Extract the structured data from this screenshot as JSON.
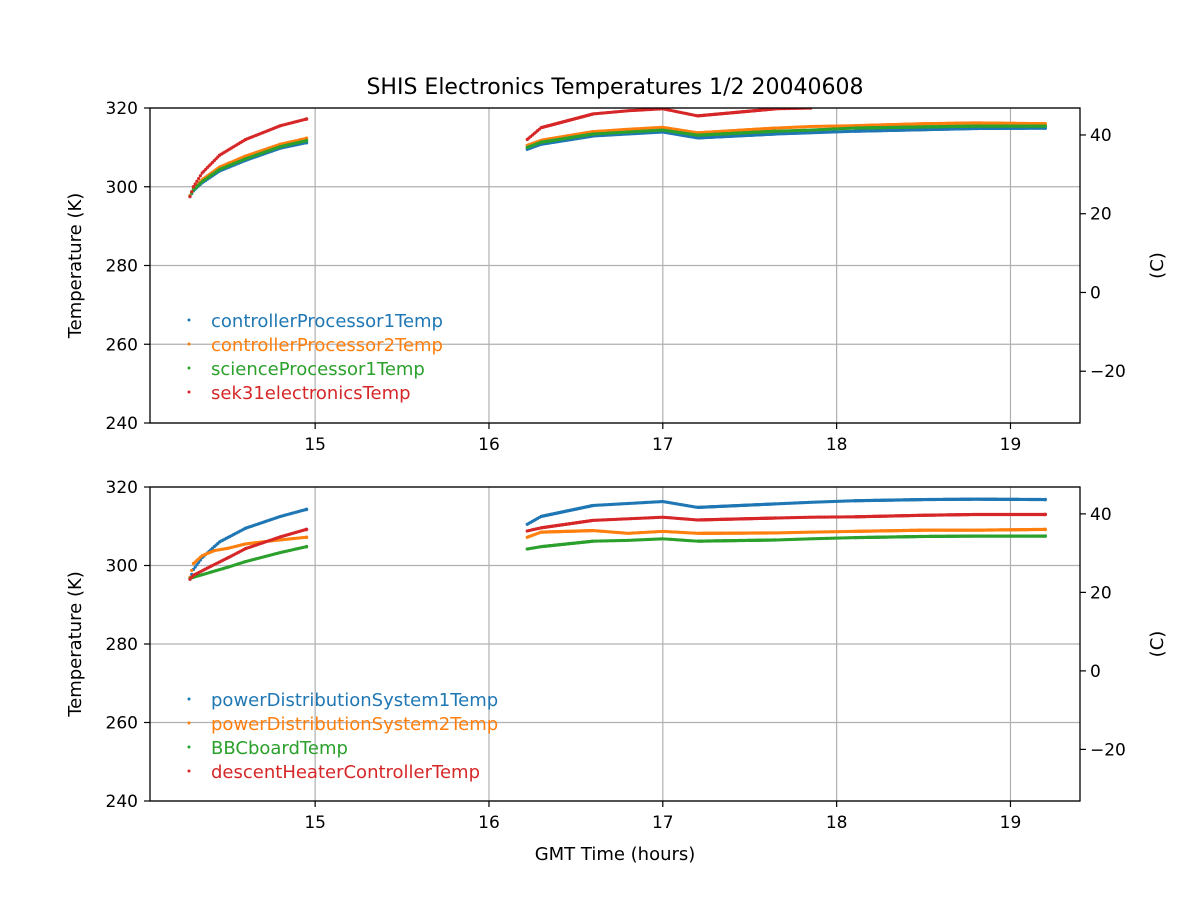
{
  "figure": {
    "title": "SHIS Electronics Temperatures 1/2 20040608"
  },
  "chart_data": [
    {
      "type": "scatter",
      "title": "SHIS Electronics Temperatures 1/2 20040608",
      "xlabel": "",
      "ylabel": "Temperature (K)",
      "y2label": "(C)",
      "xlim": [
        14.05,
        19.4
      ],
      "ylim": [
        240,
        320
      ],
      "y2lim": [
        -33.15,
        46.85
      ],
      "xticks": [
        15,
        16,
        17,
        18,
        19
      ],
      "yticks": [
        240,
        260,
        280,
        300,
        320
      ],
      "y2ticks": [
        -20,
        0,
        20,
        40
      ],
      "grid": true,
      "legend": "lower-left",
      "series": [
        {
          "name": "controllerProcessor1Temp",
          "color": "#1f77b4",
          "x": [
            14.28,
            14.3,
            14.35,
            14.45,
            14.6,
            14.8,
            14.95,
            16.22,
            16.3,
            16.6,
            16.8,
            17.0,
            17.2,
            17.65,
            17.85,
            18.1,
            18.5,
            18.8,
            19.2
          ],
          "y": [
            297.5,
            299,
            301,
            304,
            306.7,
            309.8,
            311.2,
            309.5,
            310.8,
            312.9,
            313.4,
            313.9,
            312.4,
            313.4,
            313.7,
            314.1,
            314.5,
            314.8,
            314.9
          ]
        },
        {
          "name": "controllerProcessor2Temp",
          "color": "#ff7f0e",
          "x": [
            14.28,
            14.3,
            14.35,
            14.45,
            14.6,
            14.8,
            14.95,
            16.22,
            16.3,
            16.6,
            16.8,
            17.0,
            17.2,
            17.65,
            17.85,
            18.1,
            18.5,
            18.8,
            19.2
          ],
          "y": [
            297.8,
            299.5,
            301.8,
            305,
            307.8,
            310.8,
            312.3,
            310.5,
            311.8,
            314,
            314.6,
            315.1,
            313.7,
            314.9,
            315.3,
            315.5,
            316,
            316.2,
            316
          ]
        },
        {
          "name": "scienceProcessor1Temp",
          "color": "#2ca02c",
          "x": [
            14.28,
            14.3,
            14.35,
            14.45,
            14.6,
            14.8,
            14.95,
            16.22,
            16.3,
            16.6,
            16.8,
            17.0,
            17.2,
            17.65,
            17.85,
            18.1,
            18.5,
            18.8,
            19.2
          ],
          "y": [
            297.6,
            299.2,
            301.3,
            304.4,
            307.1,
            310.2,
            311.7,
            310,
            311.3,
            313.4,
            313.9,
            314.4,
            313.1,
            314.1,
            314.4,
            314.9,
            315.2,
            315.4,
            315.4
          ]
        },
        {
          "name": "sek31electronicsTemp",
          "color": "#d62728",
          "x": [
            14.28,
            14.3,
            14.35,
            14.45,
            14.6,
            14.8,
            14.95,
            16.22,
            16.3,
            16.6,
            16.8,
            17.0,
            17.2,
            17.65,
            17.85
          ],
          "y": [
            297.5,
            300,
            303.5,
            308,
            312,
            315.5,
            317.2,
            312,
            315,
            318.5,
            319.3,
            319.8,
            318,
            319.8,
            320
          ]
        }
      ]
    },
    {
      "type": "scatter",
      "title": "",
      "xlabel": "GMT Time (hours)",
      "ylabel": "Temperature (K)",
      "y2label": "(C)",
      "xlim": [
        14.05,
        19.4
      ],
      "ylim": [
        240,
        320
      ],
      "y2lim": [
        -33.15,
        46.85
      ],
      "xticks": [
        15,
        16,
        17,
        18,
        19
      ],
      "yticks": [
        240,
        260,
        280,
        300,
        320
      ],
      "y2ticks": [
        -20,
        0,
        20,
        40
      ],
      "grid": true,
      "legend": "lower-left",
      "series": [
        {
          "name": "powerDistributionSystem1Temp",
          "color": "#1f77b4",
          "x": [
            14.28,
            14.3,
            14.35,
            14.45,
            14.6,
            14.8,
            14.95,
            16.22,
            16.3,
            16.6,
            16.8,
            17.0,
            17.2,
            17.65,
            17.85,
            18.1,
            18.5,
            18.8,
            19.2
          ],
          "y": [
            296.5,
            299,
            302,
            306,
            309.5,
            312.5,
            314.3,
            310.5,
            312.5,
            315.3,
            315.8,
            316.3,
            314.8,
            315.7,
            316.1,
            316.5,
            316.8,
            316.9,
            316.8
          ]
        },
        {
          "name": "powerDistributionSystem2Temp",
          "color": "#ff7f0e",
          "x": [
            14.28,
            14.3,
            14.35,
            14.42,
            14.5,
            14.6,
            14.75,
            14.95,
            16.22,
            16.3,
            16.6,
            16.8,
            17.0,
            17.2,
            17.65,
            17.85,
            18.1,
            18.5,
            18.8,
            19.2
          ],
          "y": [
            297,
            300.5,
            302.5,
            303.8,
            304.4,
            305.5,
            306.3,
            307.2,
            307.2,
            308.5,
            308.9,
            308.2,
            308.7,
            308.2,
            308.3,
            308.5,
            308.7,
            309,
            309,
            309.2
          ]
        },
        {
          "name": "BBCboardTemp",
          "color": "#2ca02c",
          "x": [
            14.28,
            14.3,
            14.4,
            14.5,
            14.6,
            14.8,
            14.95,
            16.22,
            16.3,
            16.6,
            16.8,
            17.0,
            17.2,
            17.65,
            17.85,
            18.1,
            18.5,
            18.8,
            19.2
          ],
          "y": [
            296.7,
            297,
            298.3,
            299.6,
            301,
            303.3,
            304.8,
            304.2,
            304.8,
            306.2,
            306.4,
            306.8,
            306.2,
            306.5,
            306.8,
            307.1,
            307.4,
            307.5,
            307.5
          ]
        },
        {
          "name": "descentHeaterControllerTemp",
          "color": "#d62728",
          "x": [
            14.28,
            14.3,
            14.4,
            14.5,
            14.6,
            14.8,
            14.95,
            16.22,
            16.3,
            16.6,
            16.8,
            17.0,
            17.2,
            17.65,
            17.85,
            18.1,
            18.5,
            18.8,
            19.2
          ],
          "y": [
            296.5,
            297.5,
            299.8,
            302,
            304.3,
            307.3,
            309.2,
            308.8,
            309.6,
            311.5,
            311.9,
            312.3,
            311.6,
            312.1,
            312.3,
            312.4,
            312.8,
            313,
            313
          ]
        }
      ]
    }
  ]
}
